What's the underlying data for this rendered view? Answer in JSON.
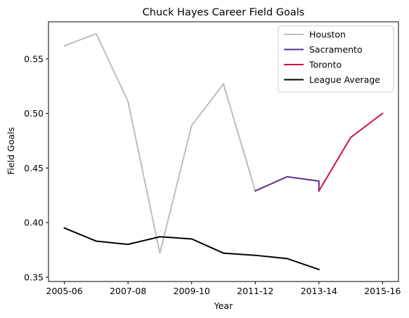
{
  "chart_data": {
    "type": "line",
    "title": "Chuck Hayes Career Field Goals",
    "xlabel": "Year",
    "ylabel": "Field Goals",
    "x": [
      "2005-06",
      "2006-07",
      "2007-08",
      "2008-09",
      "2009-10",
      "2010-11",
      "2011-12",
      "2012-13",
      "2013-14",
      "2014-15",
      "2015-16"
    ],
    "xticks": [
      "2005-06",
      "2007-08",
      "2009-10",
      "2011-12",
      "2013-14",
      "2015-16"
    ],
    "yticks": [
      0.35,
      0.4,
      0.45,
      0.5,
      0.55
    ],
    "ytick_labels": [
      "0.35",
      "0.40",
      "0.45",
      "0.50",
      "0.55"
    ],
    "ylim": [
      0.346,
      0.584
    ],
    "xlim": [
      -0.5,
      10.5
    ],
    "legend_position": "top-right",
    "grid": false,
    "series": [
      {
        "name": "Houston",
        "color": "#bdbdbd",
        "points": [
          {
            "x": "2005-06",
            "y": 0.562
          },
          {
            "x": "2006-07",
            "y": 0.573
          },
          {
            "x": "2007-08",
            "y": 0.511
          },
          {
            "x": "2008-09",
            "y": 0.372
          },
          {
            "x": "2009-10",
            "y": 0.489
          },
          {
            "x": "2010-11",
            "y": 0.527
          },
          {
            "x": "2011-12",
            "y": 0.429
          }
        ]
      },
      {
        "name": "Sacramento",
        "color": "#5c2d91",
        "points": [
          {
            "x": "2011-12",
            "y": 0.429
          },
          {
            "x": "2012-13",
            "y": 0.442
          },
          {
            "x": "2013-14",
            "y": 0.438
          },
          {
            "x": "2013-14",
            "y": 0.429
          }
        ]
      },
      {
        "name": "Toronto",
        "color": "#ce1141",
        "points": [
          {
            "x": "2013-14",
            "y": 0.429
          },
          {
            "x": "2014-15",
            "y": 0.478
          },
          {
            "x": "2015-16",
            "y": 0.5
          }
        ]
      },
      {
        "name": "League Average",
        "color": "#000000",
        "points": [
          {
            "x": "2005-06",
            "y": 0.395
          },
          {
            "x": "2006-07",
            "y": 0.383
          },
          {
            "x": "2007-08",
            "y": 0.38
          },
          {
            "x": "2008-09",
            "y": 0.387
          },
          {
            "x": "2009-10",
            "y": 0.385
          },
          {
            "x": "2010-11",
            "y": 0.372
          },
          {
            "x": "2011-12",
            "y": 0.37
          },
          {
            "x": "2012-13",
            "y": 0.367
          },
          {
            "x": "2013-14",
            "y": 0.357
          }
        ]
      }
    ]
  }
}
